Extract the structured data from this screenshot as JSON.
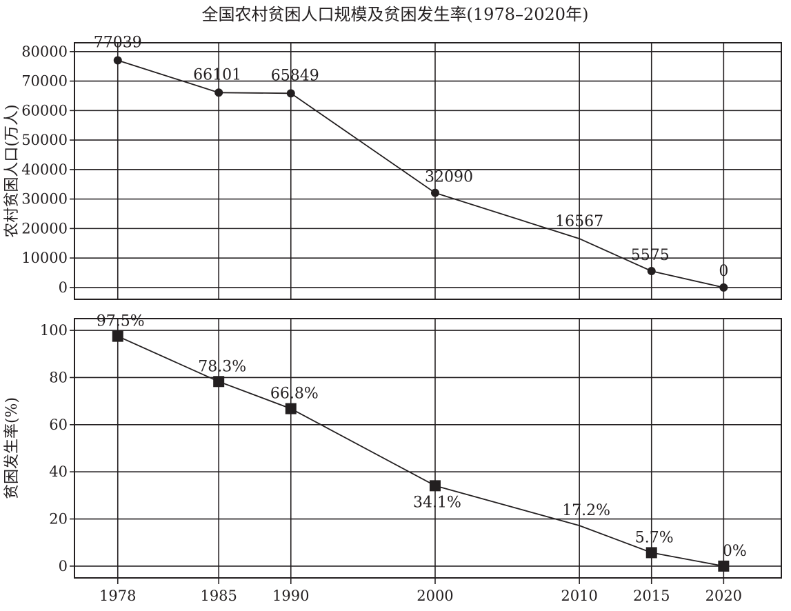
{
  "chart_data": {
    "title": "全国农村贫困人口规模及贫困发生率(1978–2020年)",
    "x": [
      1978,
      1985,
      1990,
      2000,
      2010,
      2015,
      2020
    ],
    "x_tick_labels": [
      "1978",
      "1985",
      "1990",
      "2000",
      "2010",
      "2015",
      "2020"
    ],
    "panels": [
      {
        "type": "line",
        "ylabel": "农村贫困人口(万人)",
        "ylim": [
          -4000,
          83000
        ],
        "yticks": [
          0,
          10000,
          20000,
          30000,
          40000,
          50000,
          60000,
          70000,
          80000
        ],
        "ytick_labels": [
          "0",
          "10000",
          "20000",
          "30000",
          "40000",
          "50000",
          "60000",
          "70000",
          "80000"
        ],
        "marker": "circle",
        "series": [
          {
            "values": [
              77039,
              66101,
              65849,
              32090,
              16567,
              5575,
              0
            ],
            "labels": [
              "77039",
              "66101",
              "65849",
              "32090",
              "16567",
              "5575",
              "0"
            ],
            "marker_shown": [
              true,
              true,
              true,
              true,
              false,
              true,
              true
            ]
          }
        ]
      },
      {
        "type": "line",
        "ylabel": "贫困发生率(%)",
        "ylim": [
          -5,
          105
        ],
        "yticks": [
          0,
          20,
          40,
          60,
          80,
          100
        ],
        "ytick_labels": [
          "0",
          "20",
          "40",
          "60",
          "80",
          "100"
        ],
        "marker": "square",
        "series": [
          {
            "values": [
              97.5,
              78.3,
              66.8,
              34.1,
              17.2,
              5.7,
              0
            ],
            "labels": [
              "97.5%",
              "78.3%",
              "66.8%",
              "34.1%",
              "17.2%",
              "5.7%",
              "0%"
            ],
            "marker_shown": [
              true,
              true,
              true,
              true,
              false,
              true,
              true
            ]
          }
        ]
      }
    ],
    "grid": true,
    "colors": {
      "ink": "#231f20",
      "background": "#ffffff"
    }
  }
}
